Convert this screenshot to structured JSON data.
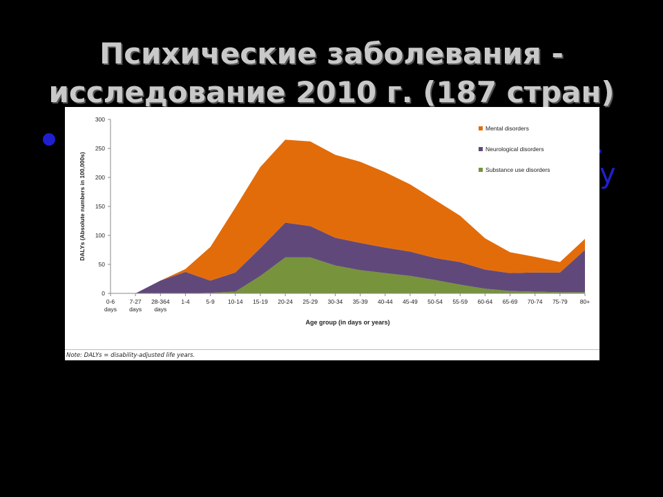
{
  "slide": {
    "title_line1": "Психические заболевания -",
    "title_line2": "исследование 2010 г. (187 стран)",
    "bullet_tail1": "·",
    "bullet_tail2": "у"
  },
  "colors": {
    "background": "#000000",
    "title": "#c9c9c9",
    "bullet": "#1f1fd0",
    "mental": "#e36c0a",
    "neuro": "#60497a",
    "substance": "#77933c"
  },
  "chart_data": {
    "type": "area",
    "stacked": true,
    "title": "",
    "xlabel": "Age group (in days or years)",
    "ylabel": "DALYs (Absolute numbers in 100,000s)",
    "ylim": [
      0,
      300
    ],
    "yticks": [
      0,
      50,
      100,
      150,
      200,
      250,
      300
    ],
    "grid": false,
    "legend_position": "top-right",
    "categories": [
      "0-6 days",
      "7-27 days",
      "28-364 days",
      "1-4",
      "5-9",
      "10-14",
      "15-19",
      "20-24",
      "25-29",
      "30-34",
      "35-39",
      "40-44",
      "45-49",
      "50-54",
      "55-59",
      "60-64",
      "65-69",
      "70-74",
      "75-79",
      "80+"
    ],
    "series": [
      {
        "name": "Substance use disorders",
        "color": "#77933c",
        "values": [
          0,
          0,
          0,
          0,
          1,
          3,
          30,
          62,
          62,
          48,
          40,
          35,
          30,
          23,
          15,
          8,
          4,
          3,
          2,
          2
        ]
      },
      {
        "name": "Neurological disorders",
        "color": "#60497a",
        "values": [
          0,
          0,
          22,
          37,
          21,
          33,
          48,
          60,
          54,
          48,
          47,
          44,
          42,
          38,
          39,
          33,
          31,
          33,
          34,
          73
        ]
      },
      {
        "name": "Mental disorders",
        "color": "#e36c0a",
        "values": [
          0,
          0,
          0,
          5,
          58,
          112,
          140,
          143,
          146,
          143,
          140,
          130,
          116,
          100,
          80,
          54,
          36,
          27,
          18,
          19
        ]
      }
    ],
    "note": "Note: DALYs = disability-adjusted life years."
  }
}
